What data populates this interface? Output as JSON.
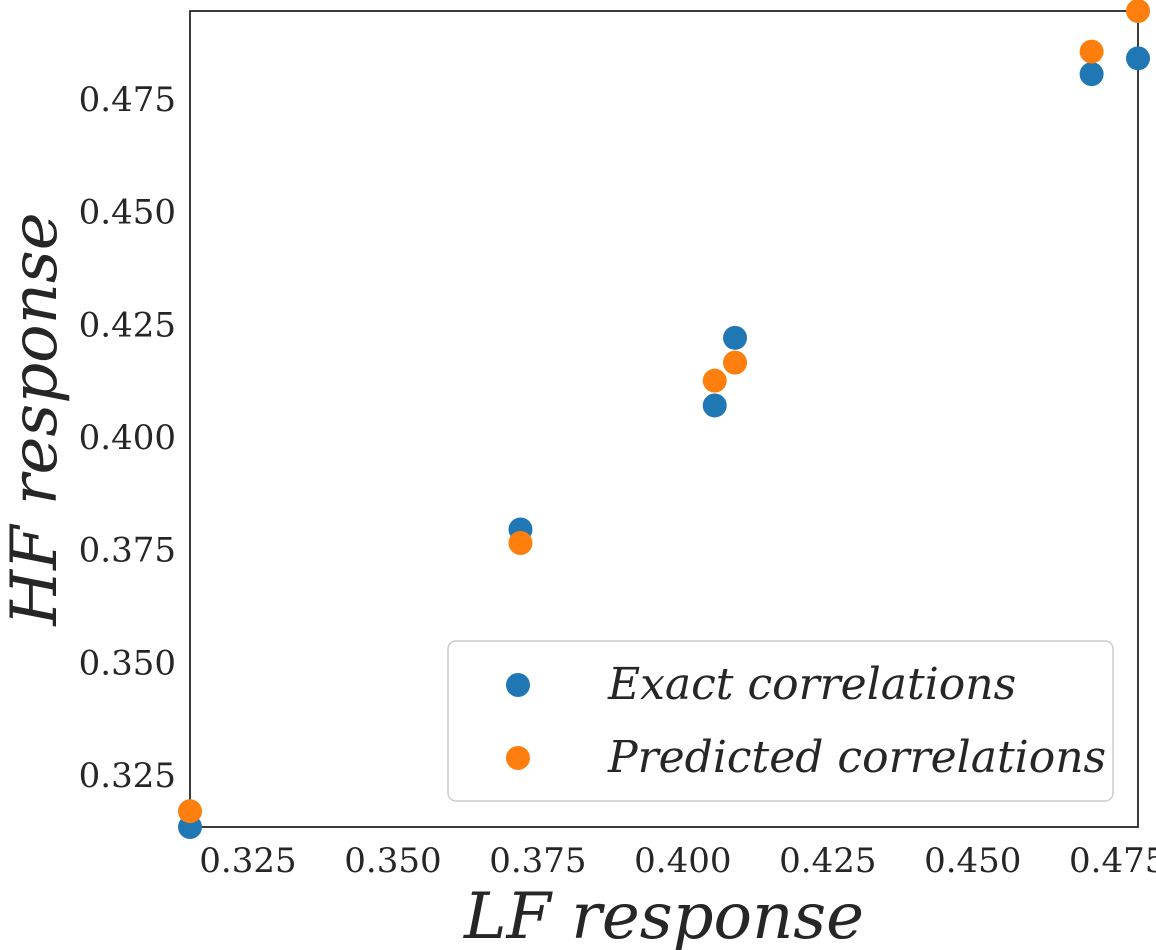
{
  "chart_data": {
    "type": "scatter",
    "title": "",
    "xlabel": "LF response",
    "ylabel": "HF response",
    "xlim": [
      0.315,
      0.4785
    ],
    "ylim": [
      0.3135,
      0.4945
    ],
    "xticks": [
      "0.325",
      "0.350",
      "0.375",
      "0.400",
      "0.425",
      "0.450",
      "0.475"
    ],
    "yticks": [
      "0.325",
      "0.350",
      "0.375",
      "0.400",
      "0.425",
      "0.450",
      "0.475"
    ],
    "grid": false,
    "legend_position": "lower-right",
    "series": [
      {
        "name": "Exact correlations",
        "color": "#1f77b4",
        "points": [
          {
            "x": 0.315,
            "y": 0.3135
          },
          {
            "x": 0.372,
            "y": 0.3795
          },
          {
            "x": 0.4055,
            "y": 0.407
          },
          {
            "x": 0.409,
            "y": 0.422
          },
          {
            "x": 0.4705,
            "y": 0.4805
          },
          {
            "x": 0.4785,
            "y": 0.484
          }
        ]
      },
      {
        "name": "Predicted correlations",
        "color": "#ff7f0e",
        "points": [
          {
            "x": 0.315,
            "y": 0.317
          },
          {
            "x": 0.372,
            "y": 0.3765
          },
          {
            "x": 0.4055,
            "y": 0.4125
          },
          {
            "x": 0.409,
            "y": 0.4165
          },
          {
            "x": 0.4705,
            "y": 0.4855
          },
          {
            "x": 0.4785,
            "y": 0.4945
          }
        ]
      }
    ]
  }
}
